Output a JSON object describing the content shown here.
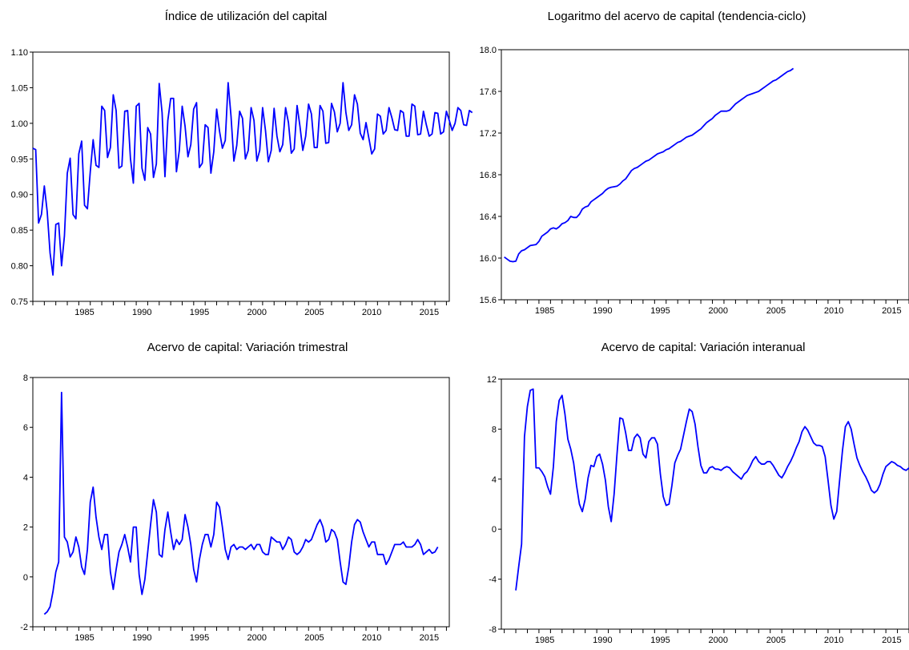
{
  "chart_data": [
    {
      "type": "line",
      "title": "Índice de utilización del capital",
      "x_start": 1981.0,
      "x_step": 0.25,
      "xlim": [
        1981.0,
        2017.25
      ],
      "x_tick_labels": [
        "1985",
        "1990",
        "1995",
        "2000",
        "2005",
        "2010",
        "2015"
      ],
      "y_tick_labels": [
        "0.75",
        "0.80",
        "0.85",
        "0.90",
        "0.95",
        "1.00",
        "1.05",
        "1.10"
      ],
      "ylim": [
        0.75,
        1.1
      ],
      "grid": false,
      "color": "#0000ff",
      "values": [
        0.965,
        0.963,
        0.86,
        0.872,
        0.912,
        0.876,
        0.818,
        0.787,
        0.858,
        0.86,
        0.8,
        0.842,
        0.93,
        0.951,
        0.872,
        0.866,
        0.957,
        0.975,
        0.885,
        0.88,
        0.932,
        0.977,
        0.941,
        0.938,
        1.024,
        1.018,
        0.952,
        0.966,
        1.04,
        1.018,
        0.937,
        0.94,
        1.017,
        1.018,
        0.95,
        0.916,
        1.024,
        1.028,
        0.937,
        0.92,
        0.994,
        0.985,
        0.924,
        0.943,
        1.056,
        1.015,
        0.925,
        1.004,
        1.035,
        1.035,
        0.932,
        0.962,
        1.024,
        0.996,
        0.953,
        0.97,
        1.02,
        1.029,
        0.938,
        0.944,
        0.998,
        0.994,
        0.93,
        0.96,
        1.02,
        0.989,
        0.965,
        0.976,
        1.057,
        1.01,
        0.947,
        0.969,
        1.017,
        1.007,
        0.95,
        0.962,
        1.022,
        1.004,
        0.947,
        0.962,
        1.022,
        0.99,
        0.946,
        0.962,
        1.021,
        0.982,
        0.96,
        0.97,
        1.022,
        1.001,
        0.958,
        0.964,
        1.025,
        0.996,
        0.962,
        0.982,
        1.027,
        1.013,
        0.966,
        0.966,
        1.025,
        1.017,
        0.972,
        0.973,
        1.028,
        1.016,
        0.988,
        1.0,
        1.057,
        1.015,
        0.99,
        0.998,
        1.04,
        1.027,
        0.986,
        0.977,
        1.001,
        0.979,
        0.957,
        0.964,
        1.013,
        1.01,
        0.985,
        0.99,
        1.022,
        1.008,
        0.991,
        0.99,
        1.018,
        1.015,
        0.982,
        0.982,
        1.027,
        1.024,
        0.984,
        0.985,
        1.017,
        0.998,
        0.982,
        0.985,
        1.015,
        1.014,
        0.985,
        0.988,
        1.017,
        1.004,
        0.99,
        1.0,
        1.022,
        1.018,
        0.998,
        0.997,
        1.018,
        1.015
      ]
    },
    {
      "type": "line",
      "title": "Logaritmo del acervo de capital (tendencia-ciclo)",
      "x_start": 1982.0,
      "x_step": 0.25,
      "xlim": [
        1981.75,
        2017.0
      ],
      "x_tick_labels": [
        "1985",
        "1990",
        "1995",
        "2000",
        "2005",
        "2010",
        "2015"
      ],
      "y_tick_labels": [
        "15.6",
        "16.0",
        "16.4",
        "16.8",
        "17.2",
        "17.6",
        "18.0"
      ],
      "ylim": [
        15.6,
        18.0
      ],
      "grid": false,
      "color": "#0000ff",
      "values": [
        16.01,
        15.99,
        15.97,
        15.965,
        15.97,
        16.04,
        16.07,
        16.08,
        16.1,
        16.12,
        16.125,
        16.13,
        16.16,
        16.21,
        16.23,
        16.25,
        16.28,
        16.29,
        16.28,
        16.3,
        16.33,
        16.34,
        16.36,
        16.4,
        16.39,
        16.39,
        16.42,
        16.47,
        16.49,
        16.5,
        16.54,
        16.56,
        16.58,
        16.6,
        16.62,
        16.65,
        16.67,
        16.68,
        16.685,
        16.69,
        16.71,
        16.74,
        16.76,
        16.8,
        16.84,
        16.86,
        16.87,
        16.89,
        16.91,
        16.93,
        16.94,
        16.96,
        16.98,
        17.0,
        17.01,
        17.02,
        17.04,
        17.05,
        17.07,
        17.09,
        17.11,
        17.12,
        17.14,
        17.16,
        17.17,
        17.18,
        17.2,
        17.22,
        17.24,
        17.27,
        17.3,
        17.32,
        17.34,
        17.37,
        17.39,
        17.41,
        17.41,
        17.41,
        17.42,
        17.45,
        17.48,
        17.5,
        17.52,
        17.54,
        17.56,
        17.57,
        17.58,
        17.59,
        17.6,
        17.62,
        17.64,
        17.66,
        17.68,
        17.7,
        17.71,
        17.73,
        17.75,
        17.77,
        17.79,
        17.8,
        17.82
      ]
    },
    {
      "type": "line",
      "title": "Acervo de capital: Variación trimestral",
      "x_start": 1982.0,
      "x_step": 0.25,
      "xlim": [
        1981.0,
        2017.25
      ],
      "x_tick_labels": [
        "1985",
        "1990",
        "1995",
        "2000",
        "2005",
        "2010",
        "2015"
      ],
      "y_tick_labels": [
        "-2",
        "0",
        "2",
        "4",
        "6",
        "8"
      ],
      "ylim": [
        -2,
        8
      ],
      "grid": false,
      "color": "#0000ff",
      "values": [
        -1.5,
        -1.4,
        -1.2,
        -0.6,
        0.2,
        0.6,
        7.4,
        1.6,
        1.4,
        0.8,
        1.0,
        1.6,
        1.2,
        0.4,
        0.1,
        1.1,
        3.0,
        3.6,
        2.4,
        1.6,
        1.1,
        1.7,
        1.7,
        0.2,
        -0.5,
        0.3,
        1.0,
        1.3,
        1.7,
        1.2,
        0.6,
        2.0,
        2.0,
        0.1,
        -0.7,
        -0.1,
        1.0,
        2.1,
        3.1,
        2.6,
        0.9,
        0.8,
        1.9,
        2.6,
        1.8,
        1.1,
        1.5,
        1.3,
        1.5,
        2.5,
        2.0,
        1.3,
        0.3,
        -0.2,
        0.7,
        1.3,
        1.7,
        1.7,
        1.2,
        1.7,
        3.0,
        2.8,
        2.0,
        1.1,
        0.7,
        1.2,
        1.3,
        1.1,
        1.2,
        1.2,
        1.1,
        1.2,
        1.3,
        1.1,
        1.3,
        1.3,
        1.0,
        0.9,
        0.9,
        1.6,
        1.5,
        1.4,
        1.4,
        1.1,
        1.3,
        1.6,
        1.5,
        1.0,
        0.9,
        1.0,
        1.2,
        1.5,
        1.4,
        1.5,
        1.8,
        2.1,
        2.3,
        2.0,
        1.4,
        1.5,
        1.9,
        1.8,
        1.5,
        0.6,
        -0.2,
        -0.3,
        0.4,
        1.4,
        2.1,
        2.3,
        2.2,
        1.8,
        1.5,
        1.2,
        1.4,
        1.4,
        0.9,
        0.9,
        0.9,
        0.5,
        0.7,
        1.0,
        1.3,
        1.3,
        1.3,
        1.4,
        1.2,
        1.2,
        1.2,
        1.3,
        1.5,
        1.3,
        0.9,
        1.0,
        1.1,
        0.95,
        1.0,
        1.2
      ]
    },
    {
      "type": "line",
      "title": "Acervo de capital: Variación interanual",
      "x_start": 1983.0,
      "x_step": 0.25,
      "xlim": [
        1981.75,
        2017.0
      ],
      "x_tick_labels": [
        "1985",
        "1990",
        "1995",
        "2000",
        "2005",
        "2010",
        "2015"
      ],
      "y_tick_labels": [
        "-8",
        "-4",
        "0",
        "4",
        "8",
        "12"
      ],
      "ylim": [
        -8,
        12
      ],
      "grid": false,
      "color": "#0000ff",
      "values": [
        -4.9,
        -3.0,
        -1.2,
        7.4,
        9.8,
        11.1,
        11.2,
        4.9,
        4.9,
        4.6,
        4.2,
        3.4,
        2.8,
        5.0,
        8.6,
        10.3,
        10.7,
        9.2,
        7.2,
        6.4,
        5.3,
        3.5,
        2.0,
        1.4,
        2.4,
        4.1,
        5.1,
        5.0,
        5.8,
        6.0,
        5.2,
        3.9,
        1.8,
        0.6,
        2.8,
        6.0,
        8.9,
        8.8,
        7.7,
        6.3,
        6.3,
        7.3,
        7.6,
        7.3,
        6.0,
        5.7,
        7.0,
        7.3,
        7.3,
        6.8,
        4.4,
        2.6,
        1.9,
        2.0,
        3.5,
        5.3,
        5.9,
        6.4,
        7.5,
        8.6,
        9.6,
        9.4,
        8.4,
        6.6,
        5.1,
        4.5,
        4.5,
        4.9,
        5.0,
        4.8,
        4.8,
        4.7,
        4.9,
        5.0,
        4.9,
        4.6,
        4.4,
        4.2,
        4.0,
        4.4,
        4.6,
        5.0,
        5.5,
        5.8,
        5.4,
        5.2,
        5.2,
        5.4,
        5.4,
        5.1,
        4.7,
        4.3,
        4.1,
        4.5,
        5.0,
        5.4,
        5.9,
        6.5,
        7.0,
        7.8,
        8.2,
        7.9,
        7.4,
        6.9,
        6.7,
        6.7,
        6.6,
        5.8,
        3.9,
        1.9,
        0.8,
        1.4,
        3.9,
        6.3,
        8.2,
        8.6,
        8.0,
        6.8,
        5.7,
        5.1,
        4.6,
        4.2,
        3.7,
        3.1,
        2.9,
        3.1,
        3.6,
        4.4,
        5.0,
        5.2,
        5.4,
        5.3,
        5.1,
        5.0,
        4.8,
        4.7,
        4.9,
        5.0,
        4.8,
        4.6,
        4.2,
        4.0,
        4.1
      ]
    }
  ]
}
